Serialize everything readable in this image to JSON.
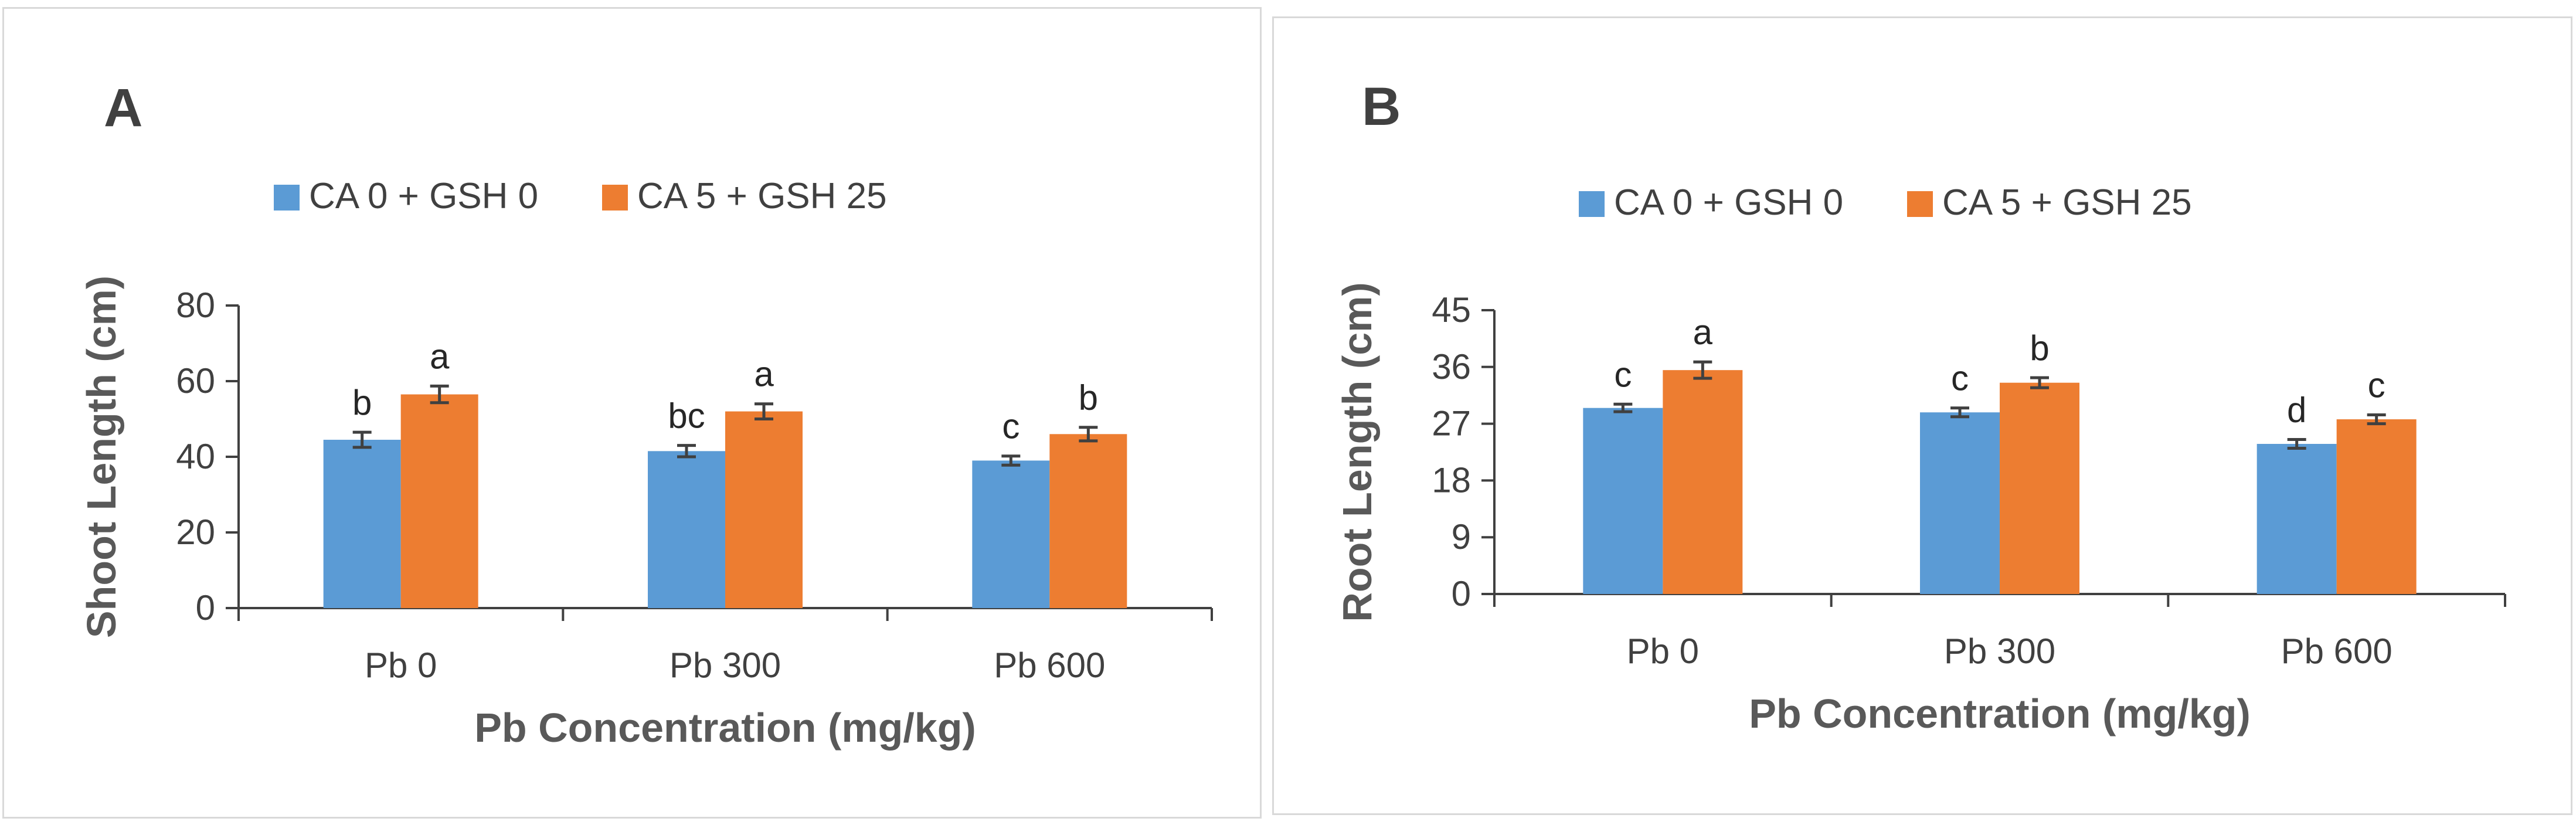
{
  "chart_data": [
    {
      "type": "bar",
      "panel_label": "A",
      "categories": [
        "Pb 0",
        "Pb 300",
        "Pb 600"
      ],
      "series": [
        {
          "name": "CA 0 + GSH 0",
          "color": "#5b9bd5",
          "values": [
            44.5,
            41.5,
            39
          ],
          "errors": [
            2,
            1.5,
            1.2
          ],
          "letters": [
            "b",
            "bc",
            "c"
          ]
        },
        {
          "name": "CA 5 + GSH 25",
          "color": "#ed7d31",
          "values": [
            56.5,
            52,
            46
          ],
          "errors": [
            2.2,
            2,
            1.8
          ],
          "letters": [
            "a",
            "a",
            "b"
          ]
        }
      ],
      "xlabel": "Pb Concentration (mg/kg)",
      "ylabel": "Shoot Length (cm)",
      "ylim": [
        0,
        80
      ],
      "yticks": [
        "0",
        "20",
        "40",
        "60",
        "80"
      ],
      "grid": false,
      "legend": "top-center"
    },
    {
      "type": "bar",
      "panel_label": "B",
      "categories": [
        "Pb 0",
        "Pb 300",
        "Pb 600"
      ],
      "series": [
        {
          "name": "CA 0 + GSH 0",
          "color": "#5b9bd5",
          "values": [
            29.5,
            28.8,
            23.8
          ],
          "errors": [
            0.6,
            0.7,
            0.7
          ],
          "letters": [
            "c",
            "c",
            "d"
          ]
        },
        {
          "name": "CA 5 + GSH 25",
          "color": "#ed7d31",
          "values": [
            35.5,
            33.5,
            27.7
          ],
          "errors": [
            1.3,
            0.8,
            0.7
          ],
          "letters": [
            "a",
            "b",
            "c"
          ]
        }
      ],
      "xlabel": "Pb Concentration (mg/kg)",
      "ylabel": "Root Length (cm)",
      "ylim": [
        0,
        45
      ],
      "yticks": [
        "0",
        "9",
        "18",
        "27",
        "36",
        "45"
      ],
      "grid": false,
      "legend": "top-center"
    }
  ]
}
